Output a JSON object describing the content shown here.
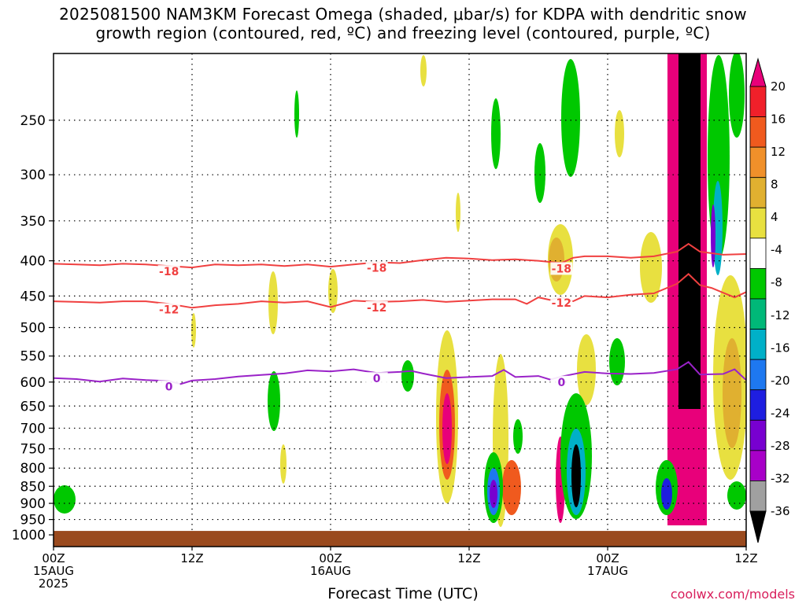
{
  "title": {
    "line1": "2025081500 NAM3KM Forecast Omega (shaded, μbar/s) for KDPA with dendritic snow",
    "line2": "growth region (contoured, red, ºC) and freezing level (contoured, purple, ºC)"
  },
  "xlabel": "Forecast Time (UTC)",
  "credit": "coolwx.com/models",
  "chart_data": {
    "type": "heatmap",
    "title": "2025081500 NAM3KM Forecast Omega (shaded, μbar/s) for KDPA with dendritic snow growth region (contoured, red, ºC) and freezing level (contoured, purple, ºC)",
    "xlabel": "Forecast Time (UTC)",
    "ylabel": "",
    "x_range_hours": [
      0,
      60
    ],
    "x_ticks": [
      {
        "hour": 0,
        "label": "00Z",
        "sub1": "15AUG",
        "sub2": "2025"
      },
      {
        "hour": 12,
        "label": "12Z",
        "sub1": "",
        "sub2": ""
      },
      {
        "hour": 24,
        "label": "00Z",
        "sub1": "16AUG",
        "sub2": ""
      },
      {
        "hour": 36,
        "label": "12Z",
        "sub1": "",
        "sub2": ""
      },
      {
        "hour": 48,
        "label": "00Z",
        "sub1": "17AUG",
        "sub2": ""
      },
      {
        "hour": 60,
        "label": "12Z",
        "sub1": "",
        "sub2": ""
      }
    ],
    "y_levels_hpa": [
      250,
      300,
      350,
      400,
      450,
      500,
      550,
      600,
      650,
      700,
      750,
      800,
      850,
      900,
      950,
      1000
    ],
    "y_range_hpa": [
      200,
      1040
    ],
    "y_scale": "log",
    "grid": true,
    "colorbar": {
      "labels": [
        "20",
        "16",
        "12",
        "8",
        "4",
        "-4",
        "-8",
        "-12",
        "-16",
        "-20",
        "-24",
        "-28",
        "-32",
        "-36"
      ],
      "colors": [
        "#e8007a",
        "#f0202a",
        "#f05a1e",
        "#f0902a",
        "#e0b030",
        "#e8e040",
        "#ffffff",
        "#00c800",
        "#00b878",
        "#00b0c8",
        "#1e78f0",
        "#1e1ee0",
        "#7800d0",
        "#a800c8",
        "#a0a0a0",
        "#000000"
      ]
    },
    "contours": [
      {
        "label": "-18",
        "color": "#f04040",
        "points": [
          [
            0,
            404
          ],
          [
            2,
            405
          ],
          [
            4,
            406
          ],
          [
            6,
            404
          ],
          [
            8,
            405
          ],
          [
            10,
            407
          ],
          [
            12,
            409
          ],
          [
            14,
            405
          ],
          [
            16,
            406
          ],
          [
            18,
            405
          ],
          [
            20,
            407
          ],
          [
            22,
            405
          ],
          [
            24,
            408
          ],
          [
            26,
            405
          ],
          [
            28,
            402
          ],
          [
            30,
            403
          ],
          [
            32,
            399
          ],
          [
            34,
            396
          ],
          [
            36,
            397
          ],
          [
            38,
            399
          ],
          [
            40,
            398
          ],
          [
            42,
            400
          ],
          [
            44,
            403
          ],
          [
            45,
            396
          ],
          [
            46,
            394
          ],
          [
            48,
            394
          ],
          [
            50,
            396
          ],
          [
            52,
            394
          ],
          [
            54,
            388
          ],
          [
            55,
            378
          ],
          [
            56,
            388
          ],
          [
            58,
            392
          ],
          [
            60,
            391
          ]
        ]
      },
      {
        "label": "-12",
        "color": "#f04040",
        "points": [
          [
            0,
            458
          ],
          [
            2,
            459
          ],
          [
            4,
            460
          ],
          [
            6,
            458
          ],
          [
            8,
            458
          ],
          [
            10,
            462
          ],
          [
            12,
            468
          ],
          [
            14,
            464
          ],
          [
            16,
            462
          ],
          [
            18,
            458
          ],
          [
            20,
            460
          ],
          [
            22,
            458
          ],
          [
            24,
            467
          ],
          [
            26,
            457
          ],
          [
            28,
            459
          ],
          [
            30,
            458
          ],
          [
            32,
            456
          ],
          [
            34,
            459
          ],
          [
            36,
            457
          ],
          [
            38,
            455
          ],
          [
            40,
            455
          ],
          [
            41,
            462
          ],
          [
            42,
            452
          ],
          [
            43,
            456
          ],
          [
            44,
            452
          ],
          [
            45,
            458
          ],
          [
            46,
            450
          ],
          [
            48,
            452
          ],
          [
            50,
            448
          ],
          [
            52,
            446
          ],
          [
            54,
            432
          ],
          [
            55,
            418
          ],
          [
            56,
            434
          ],
          [
            57,
            438
          ],
          [
            58,
            445
          ],
          [
            59,
            452
          ],
          [
            60,
            444
          ]
        ]
      },
      {
        "label": "0",
        "color": "#9a22c8",
        "points": [
          [
            0,
            592
          ],
          [
            2,
            594
          ],
          [
            4,
            599
          ],
          [
            6,
            593
          ],
          [
            8,
            596
          ],
          [
            10,
            598
          ],
          [
            11,
            604
          ],
          [
            12,
            597
          ],
          [
            14,
            594
          ],
          [
            16,
            589
          ],
          [
            18,
            586
          ],
          [
            20,
            583
          ],
          [
            22,
            577
          ],
          [
            24,
            579
          ],
          [
            26,
            575
          ],
          [
            28,
            582
          ],
          [
            30,
            580
          ],
          [
            31,
            578
          ],
          [
            32,
            583
          ],
          [
            34,
            592
          ],
          [
            36,
            590
          ],
          [
            38,
            588
          ],
          [
            39,
            576
          ],
          [
            40,
            590
          ],
          [
            42,
            588
          ],
          [
            43,
            595
          ],
          [
            44,
            589
          ],
          [
            46,
            580
          ],
          [
            48,
            583
          ],
          [
            50,
            584
          ],
          [
            52,
            582
          ],
          [
            54,
            575
          ],
          [
            55,
            561
          ],
          [
            56,
            585
          ],
          [
            58,
            584
          ],
          [
            59,
            575
          ],
          [
            60,
            596
          ]
        ]
      }
    ],
    "ground": {
      "from_hpa": 1000,
      "color": "#9a4a1e"
    }
  }
}
